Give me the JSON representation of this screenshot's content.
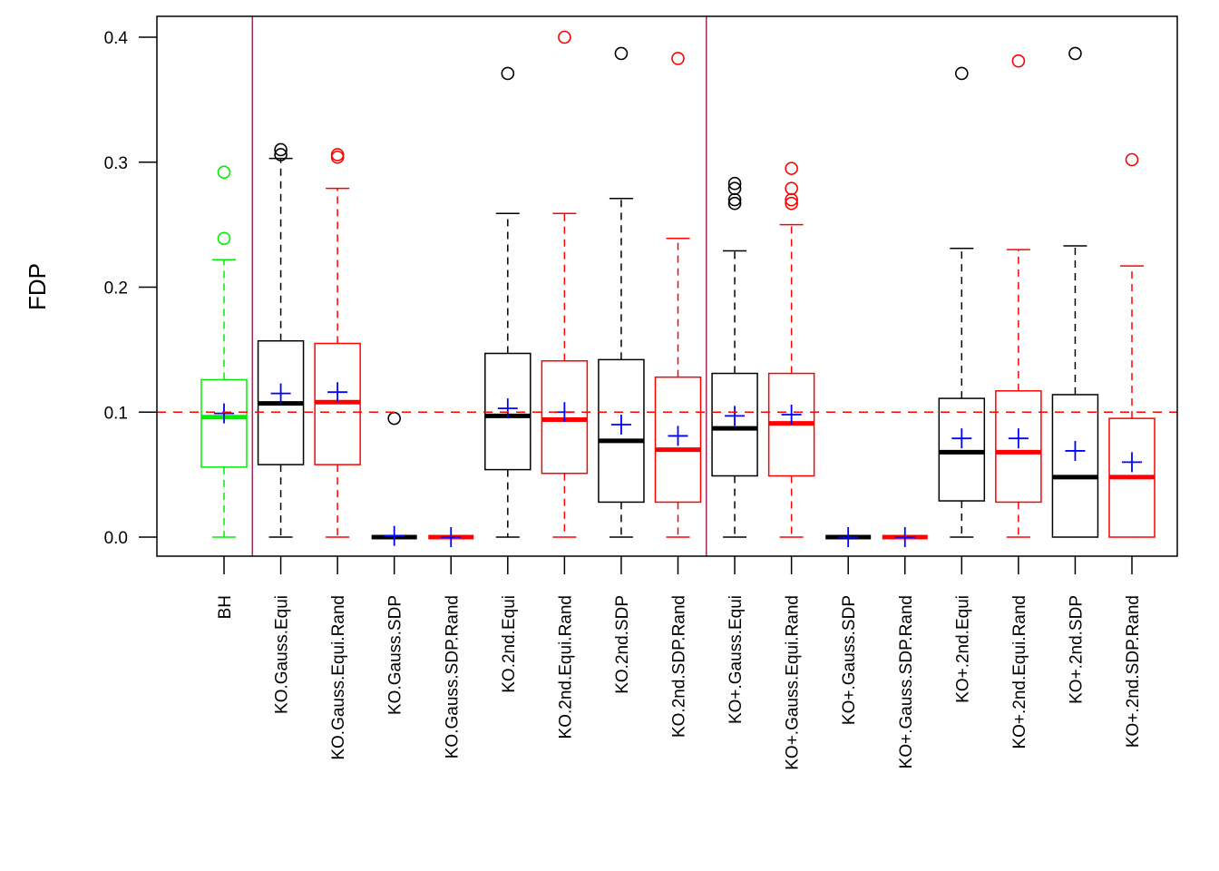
{
  "chart_data": {
    "type": "boxplot",
    "title": "",
    "xlabel": "",
    "ylabel": "FDP",
    "ylim": [
      -0.015,
      0.415
    ],
    "yticks": [
      0.0,
      0.1,
      0.2,
      0.3,
      0.4
    ],
    "ytick_labels": [
      "0.0",
      "0.1",
      "0.2",
      "0.3",
      "0.4"
    ],
    "reference_line": {
      "value": 0.1,
      "color": "#ff0000",
      "style": "dashed"
    },
    "group_separators": [
      1.5,
      9.5
    ],
    "separator_color": "#9e2a5a",
    "mean_marker_color": "#0000ff",
    "categories": [
      "BH",
      "KO.Gauss.Equi",
      "KO.Gauss.Equi.Rand",
      "KO.Gauss.SDP",
      "KO.Gauss.SDP.Rand",
      "KO.2nd.Equi",
      "KO.2nd.Equi.Rand",
      "KO.2nd.SDP",
      "KO.2nd.SDP.Rand",
      "KO+.Gauss.Equi",
      "KO+.Gauss.Equi.Rand",
      "KO+.Gauss.SDP",
      "KO+.Gauss.SDP.Rand",
      "KO+.2nd.Equi",
      "KO+.2nd.Equi.Rand",
      "KO+.2nd.SDP",
      "KO+.2nd.SDP.Rand"
    ],
    "boxes": [
      {
        "name": "BH",
        "color": "#00ee00",
        "whisker_low": 0.0,
        "q1": 0.056,
        "median": 0.096,
        "q3": 0.126,
        "whisker_high": 0.222,
        "mean": 0.099,
        "outliers": [
          0.239,
          0.292
        ]
      },
      {
        "name": "KO.Gauss.Equi",
        "color": "#000000",
        "whisker_low": 0.0,
        "q1": 0.058,
        "median": 0.107,
        "q3": 0.157,
        "whisker_high": 0.303,
        "mean": 0.115,
        "outliers": [
          0.306,
          0.31
        ]
      },
      {
        "name": "KO.Gauss.Equi.Rand",
        "color": "#ff0000",
        "whisker_low": 0.0,
        "q1": 0.058,
        "median": 0.108,
        "q3": 0.155,
        "whisker_high": 0.279,
        "mean": 0.116,
        "outliers": [
          0.304,
          0.306
        ]
      },
      {
        "name": "KO.Gauss.SDP",
        "color": "#000000",
        "whisker_low": 0.0,
        "q1": 0.0,
        "median": 0.0,
        "q3": 0.0,
        "whisker_high": 0.0,
        "mean": 0.001,
        "outliers": [
          0.095
        ]
      },
      {
        "name": "KO.Gauss.SDP.Rand",
        "color": "#ff0000",
        "whisker_low": 0.0,
        "q1": 0.0,
        "median": 0.0,
        "q3": 0.0,
        "whisker_high": 0.0,
        "mean": 0.0,
        "outliers": []
      },
      {
        "name": "KO.2nd.Equi",
        "color": "#000000",
        "whisker_low": 0.0,
        "q1": 0.054,
        "median": 0.097,
        "q3": 0.147,
        "whisker_high": 0.259,
        "mean": 0.103,
        "outliers": [
          0.371
        ]
      },
      {
        "name": "KO.2nd.Equi.Rand",
        "color": "#ff0000",
        "whisker_low": 0.0,
        "q1": 0.051,
        "median": 0.094,
        "q3": 0.141,
        "whisker_high": 0.259,
        "mean": 0.1,
        "outliers": [
          0.4
        ]
      },
      {
        "name": "KO.2nd.SDP",
        "color": "#000000",
        "whisker_low": 0.0,
        "q1": 0.028,
        "median": 0.077,
        "q3": 0.142,
        "whisker_high": 0.271,
        "mean": 0.09,
        "outliers": [
          0.387
        ]
      },
      {
        "name": "KO.2nd.SDP.Rand",
        "color": "#ff0000",
        "whisker_low": 0.0,
        "q1": 0.028,
        "median": 0.07,
        "q3": 0.128,
        "whisker_high": 0.239,
        "mean": 0.081,
        "outliers": [
          0.383
        ]
      },
      {
        "name": "KO+.Gauss.Equi",
        "color": "#000000",
        "whisker_low": 0.0,
        "q1": 0.049,
        "median": 0.087,
        "q3": 0.131,
        "whisker_high": 0.229,
        "mean": 0.097,
        "outliers": [
          0.267,
          0.27,
          0.279,
          0.283
        ]
      },
      {
        "name": "KO+.Gauss.Equi.Rand",
        "color": "#ff0000",
        "whisker_low": 0.0,
        "q1": 0.049,
        "median": 0.091,
        "q3": 0.131,
        "whisker_high": 0.25,
        "mean": 0.098,
        "outliers": [
          0.267,
          0.27,
          0.279,
          0.295
        ]
      },
      {
        "name": "KO+.Gauss.SDP",
        "color": "#000000",
        "whisker_low": 0.0,
        "q1": 0.0,
        "median": 0.0,
        "q3": 0.0,
        "whisker_high": 0.0,
        "mean": 0.0,
        "outliers": []
      },
      {
        "name": "KO+.Gauss.SDP.Rand",
        "color": "#ff0000",
        "whisker_low": 0.0,
        "q1": 0.0,
        "median": 0.0,
        "q3": 0.0,
        "whisker_high": 0.0,
        "mean": 0.0,
        "outliers": []
      },
      {
        "name": "KO+.2nd.Equi",
        "color": "#000000",
        "whisker_low": 0.0,
        "q1": 0.029,
        "median": 0.068,
        "q3": 0.111,
        "whisker_high": 0.231,
        "mean": 0.079,
        "outliers": [
          0.371
        ]
      },
      {
        "name": "KO+.2nd.Equi.Rand",
        "color": "#ff0000",
        "whisker_low": 0.0,
        "q1": 0.028,
        "median": 0.068,
        "q3": 0.117,
        "whisker_high": 0.23,
        "mean": 0.079,
        "outliers": [
          0.381
        ]
      },
      {
        "name": "KO+.2nd.SDP",
        "color": "#000000",
        "whisker_low": 0.0,
        "q1": 0.0,
        "median": 0.048,
        "q3": 0.114,
        "whisker_high": 0.233,
        "mean": 0.069,
        "outliers": [
          0.387
        ]
      },
      {
        "name": "KO+.2nd.SDP.Rand",
        "color": "#ff0000",
        "whisker_low": 0.0,
        "q1": 0.0,
        "median": 0.048,
        "q3": 0.095,
        "whisker_high": 0.217,
        "mean": 0.06,
        "outliers": [
          0.302
        ]
      }
    ],
    "grid": false,
    "legend": "none"
  }
}
